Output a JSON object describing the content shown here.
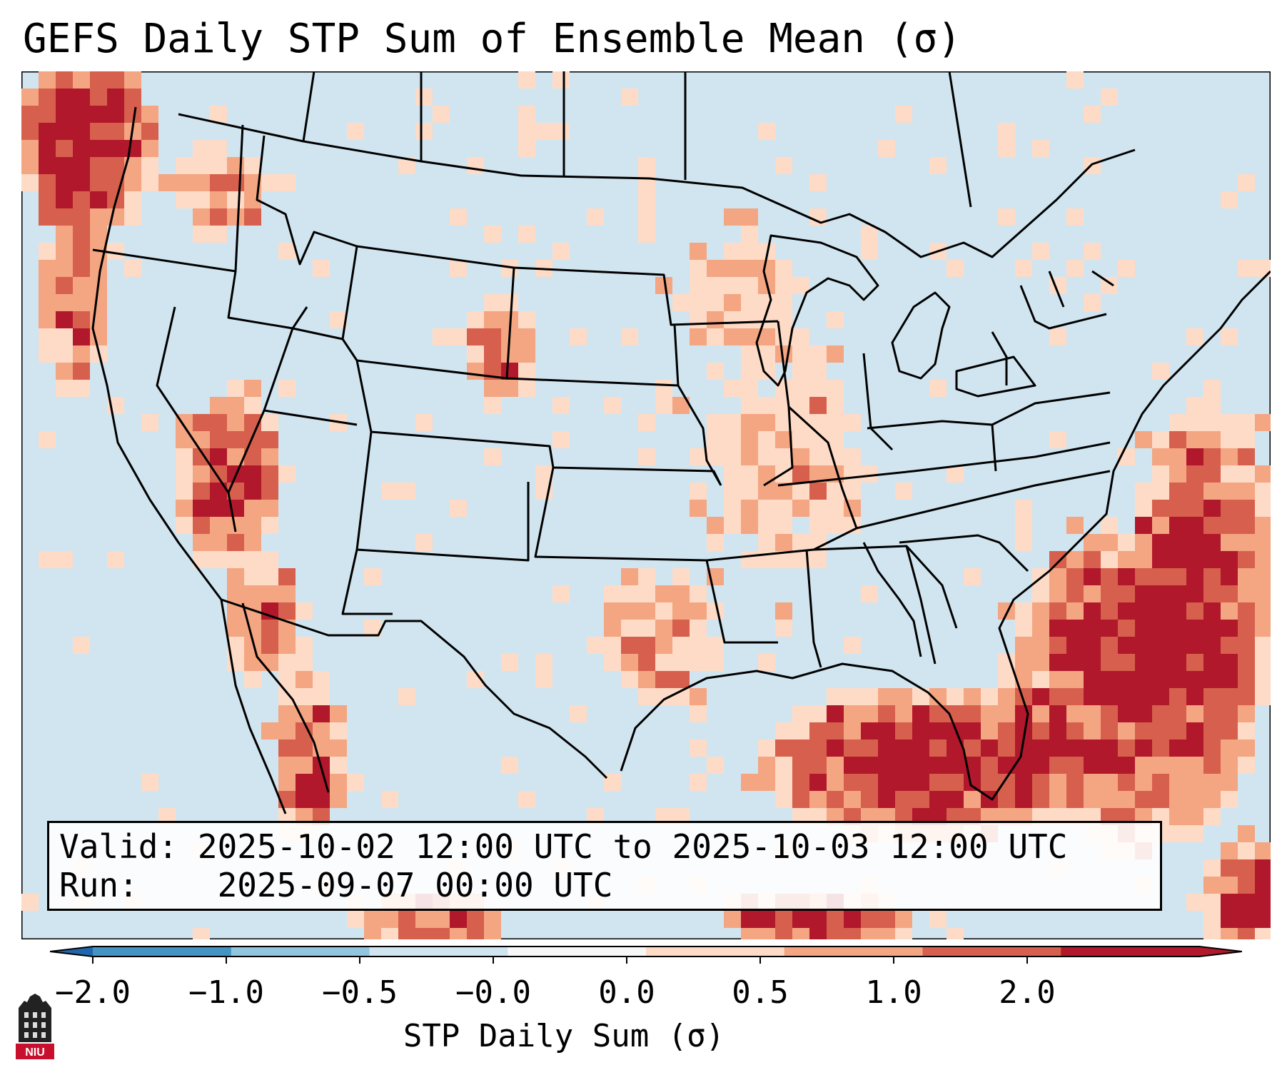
{
  "title": "GEFS Daily STP Sum of Ensemble Mean (σ)",
  "info": {
    "valid_label": "Valid:",
    "valid_value": "2025-10-02 12:00 UTC to 2025-10-03 12:00 UTC",
    "run_label": "Run:",
    "run_value": "2025-09-07 00:00 UTC"
  },
  "colorbar": {
    "title": "STP Daily Sum (σ)",
    "ticks": [
      "−2.0",
      "−1.0",
      "−0.5",
      "−0.0",
      "0.0",
      "0.5",
      "1.0",
      "2.0"
    ],
    "colors": [
      "#4393c3",
      "#92c5de",
      "#d1e5f0",
      "#f7f7f7",
      "#fddbc7",
      "#f4a582",
      "#d6604d",
      "#b2182b"
    ],
    "under_color": "#2166ac",
    "over_color": "#b2182b"
  },
  "logo": {
    "text": "NIU"
  },
  "map": {
    "background_color": "#d1e5f0",
    "ocean_color": "#d1e5f0",
    "line_color": "#000000"
  }
}
